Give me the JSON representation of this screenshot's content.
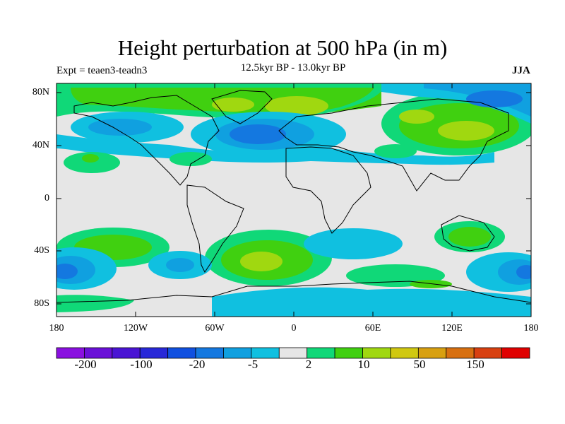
{
  "title": "Height perturbation at 500 hPa (in m)",
  "experiment": "Expt = teaen3-teadn3",
  "period": "12.5kyr BP - 13.0kyr BP",
  "season": "JJA",
  "lat_labels": [
    "80N",
    "40N",
    "0",
    "40S",
    "80S"
  ],
  "lon_labels": [
    "180",
    "120W",
    "60W",
    "0",
    "60E",
    "120E",
    "180"
  ],
  "colorbar": {
    "colors": [
      "#8a10e0",
      "#6a10d8",
      "#4a14d4",
      "#2828d8",
      "#1050e0",
      "#1478e0",
      "#10a0e0",
      "#10c0e0",
      "#e6e6e6",
      "#10d878",
      "#40d010",
      "#a0d810",
      "#d0c810",
      "#d8a010",
      "#d87010",
      "#d84010",
      "#e00000"
    ],
    "labels": [
      "-200",
      "-100",
      "-20",
      "-5",
      "2",
      "10",
      "50",
      "150"
    ]
  },
  "map_colors": {
    "background": "#e6e6e6",
    "neg_light": "#10c0e0",
    "neg_mid": "#10a0e0",
    "neg_strong": "#1478e0",
    "neg_deep": "#1050e0",
    "pos_light": "#10d878",
    "pos_mid": "#40d010",
    "pos_strong": "#a0d810",
    "coast": "#000000"
  }
}
